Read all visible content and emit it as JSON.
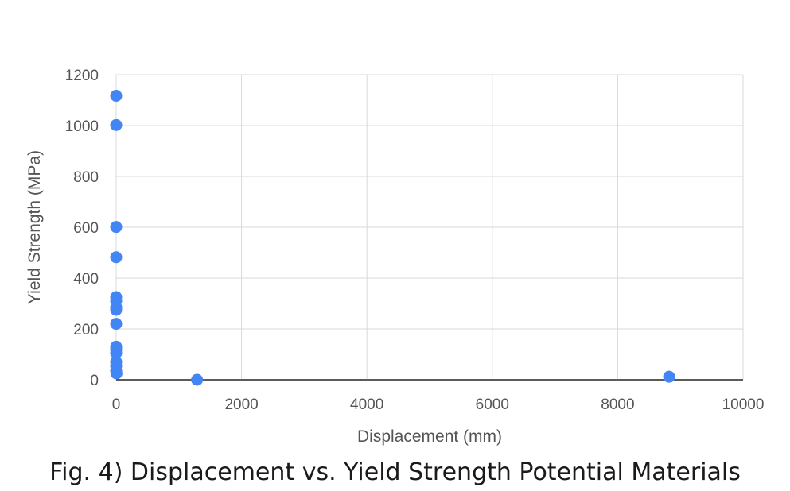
{
  "chart_data": {
    "type": "scatter",
    "title": "",
    "xlabel": "Displacement (mm)",
    "ylabel": "Yield Strength (MPa)",
    "xlim": [
      0,
      10000
    ],
    "ylim": [
      0,
      1200
    ],
    "x_ticks": [
      "0",
      "2000",
      "4000",
      "6000",
      "8000",
      "10000"
    ],
    "y_ticks": [
      "0",
      "200",
      "400",
      "600",
      "800",
      "1000",
      "1200"
    ],
    "grid": true,
    "legend": "none",
    "color": "#4285f4",
    "points": [
      {
        "x": 0,
        "y": 1117
      },
      {
        "x": 0,
        "y": 1002
      },
      {
        "x": 0,
        "y": 601
      },
      {
        "x": 0,
        "y": 482
      },
      {
        "x": 0,
        "y": 325
      },
      {
        "x": 0,
        "y": 310
      },
      {
        "x": 0,
        "y": 285
      },
      {
        "x": 0,
        "y": 275
      },
      {
        "x": 0,
        "y": 220
      },
      {
        "x": 0,
        "y": 130
      },
      {
        "x": 0,
        "y": 118
      },
      {
        "x": 0,
        "y": 105
      },
      {
        "x": 0,
        "y": 70
      },
      {
        "x": 0,
        "y": 55
      },
      {
        "x": 0,
        "y": 35
      },
      {
        "x": 5,
        "y": 25
      },
      {
        "x": 1290,
        "y": 0
      },
      {
        "x": 8820,
        "y": 12
      }
    ]
  },
  "caption": "Fig. 4) Displacement vs. Yield Strength Potential Materials"
}
